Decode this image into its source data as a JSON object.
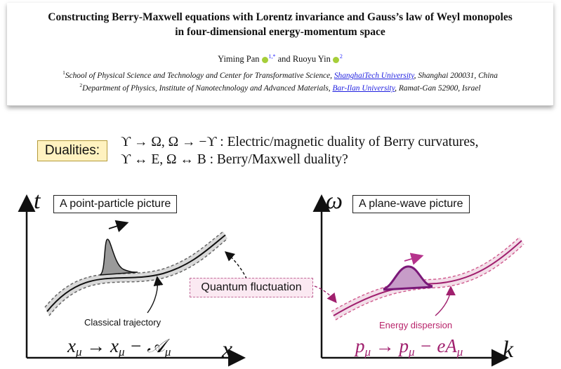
{
  "paper": {
    "title_line1": "Constructing Berry-Maxwell equations with Lorentz invariance and Gauss’s law of Weyl monopoles",
    "title_line2": "in four-dimensional energy-momentum space",
    "author1": "Yiming Pan",
    "author1_sup": "1,*",
    "and": "and",
    "author2": "Ruoyu Yin",
    "author2_sup": "2",
    "affiliation1_num": "1",
    "affiliation1_pre": "School of Physical Science and Technology and Center for Transformative Science, ",
    "affiliation1_uni": "ShanghaiTech University",
    "affiliation1_post": ", Shanghai 200031, China",
    "affiliation2_num": "2",
    "affiliation2_pre": "Department of Physics, Institute of Nanotechnology and Advanced Materials, ",
    "affiliation2_uni": "Bar-Ilan University",
    "affiliation2_post": ", Ramat-Gan 52900, Israel"
  },
  "dualities": {
    "label": "Dualities:",
    "line1": "ϒ → Ω, Ω → −ϒ :  Electric/magnetic duality of Berry curvatures,",
    "line2_math": "ϒ ↔ E, Ω ↔ B :",
    "line2_text": "  Berry/Maxwell duality?"
  },
  "left_panel": {
    "y_axis": "t",
    "x_axis": "x",
    "label": "A point-particle picture",
    "trajectory_label": "Classical trajectory",
    "formula_lhs": "x",
    "formula_mid": " → x",
    "formula_rhs": " − 𝒜",
    "formula_sub": "μ"
  },
  "right_panel": {
    "y_axis": "ω",
    "x_axis": "k",
    "label": "A plane-wave picture",
    "dispersion_label": "Energy dispersion",
    "formula_lhs": "p",
    "formula_mid": " → p",
    "formula_rhs": " − eA",
    "formula_sub": "μ"
  },
  "shared": {
    "quantum_fluctuation": "Quantum fluctuation"
  },
  "colors": {
    "dual_box_fill": "#fff2c0",
    "link_blue": "#2020e0",
    "orcid_green": "#a6ce39",
    "magenta": "#a0206e",
    "magenta_dark": "#7a1878",
    "dispersion_text": "#b8236a",
    "qf_fill": "#fbe9f2"
  }
}
